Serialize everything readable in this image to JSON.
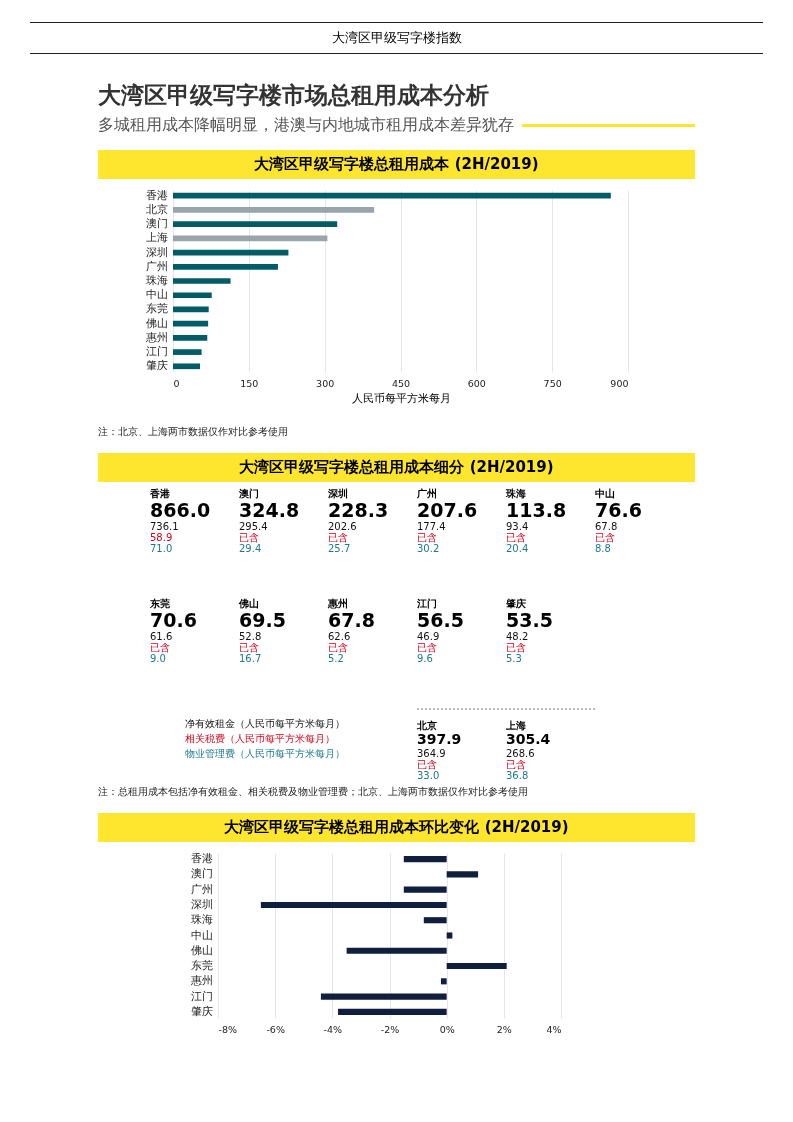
{
  "chart_data": [
    {
      "type": "other",
      "title": "大湾区甲级写字楼市场总租用成本分析",
      "subtitle": "多城租用成本降幅明显，港澳与内地城市租用成本差异犹存",
      "annotations": [
        "大湾区甲级写字楼指数"
      ]
    },
    {
      "type": "bar",
      "title": "大湾区甲级写字楼总租用成本 (2H/2019)",
      "orientation": "horizontal",
      "categories": [
        "香港",
        "北京",
        "澳门",
        "上海",
        "深圳",
        "广州",
        "珠海",
        "中山",
        "东莞",
        "佛山",
        "惠州",
        "江门",
        "肇庆"
      ],
      "values": [
        866.0,
        397.9,
        324.8,
        305.4,
        228.3,
        207.6,
        113.8,
        76.6,
        70.6,
        69.5,
        67.8,
        56.5,
        53.5
      ],
      "colors": [
        "#005c66",
        "#9aa4ab",
        "#005c66",
        "#9aa4ab",
        "#005c66",
        "#005c66",
        "#005c66",
        "#005c66",
        "#005c66",
        "#005c66",
        "#005c66",
        "#005c66",
        "#005c66"
      ],
      "xlim": [
        0,
        900
      ],
      "xticks": [
        0,
        150,
        300,
        450,
        600,
        750,
        900
      ],
      "xlabel": "人民币每平方米每月",
      "grid": "x",
      "annotations": [
        "注：北京、上海两市数据仅作对比参考使用"
      ]
    },
    {
      "type": "other",
      "title": "大湾区甲级写字楼总租用成本细分 (2H/2019)",
      "categories": [
        "香港",
        "澳门",
        "深圳",
        "广州",
        "珠海",
        "中山",
        "东莞",
        "佛山",
        "惠州",
        "江门",
        "肇庆",
        "北京",
        "上海"
      ],
      "totals": [
        "866.0",
        "324.8",
        "228.3",
        "207.6",
        "113.8",
        "76.6",
        "70.6",
        "69.5",
        "67.8",
        "56.5",
        "53.5",
        "397.9",
        "305.4"
      ],
      "series": [
        {
          "name": "净有效租金（人民币每平方米每月）",
          "color": "#111111",
          "values": [
            736.1,
            295.4,
            202.6,
            177.4,
            93.4,
            67.8,
            61.6,
            52.8,
            62.6,
            46.9,
            48.2,
            364.9,
            268.6
          ],
          "value_labels": [
            "736.1",
            "295.4",
            "202.6",
            "177.4",
            "93.4",
            "67.8",
            "61.6",
            "52.8",
            "62.6",
            "46.9",
            "48.2",
            "364.9",
            "268.6"
          ]
        },
        {
          "name": "相关税费（人民币每平方米每月）",
          "color": "#d0021b",
          "values": [
            58.9,
            null,
            null,
            null,
            null,
            null,
            null,
            null,
            null,
            null,
            null,
            null,
            null
          ],
          "value_labels": [
            "58.9",
            "已含",
            "已含",
            "已含",
            "已含",
            "已含",
            "已含",
            "已含",
            "已含",
            "已含",
            "已含",
            "已含",
            "已含"
          ]
        },
        {
          "name": "物业管理费（人民币每平方米每月）",
          "color": "#1b7a8c",
          "values": [
            71.0,
            29.4,
            25.7,
            30.2,
            20.4,
            8.8,
            9.0,
            16.7,
            5.2,
            9.6,
            5.3,
            33.0,
            36.8
          ],
          "value_labels": [
            "71.0",
            "29.4",
            "25.7",
            "30.2",
            "20.4",
            "8.8",
            "9.0",
            "16.7",
            "5.2",
            "9.6",
            "5.3",
            "33.0",
            "36.8"
          ]
        }
      ],
      "annotations": [
        "注：总租用成本包括净有效租金、相关税费及物业管理费；北京、上海两市数据仅作对比参考使用"
      ]
    },
    {
      "type": "bar",
      "title": "大湾区甲级写字楼总租用成本环比变化 (2H/2019)",
      "orientation": "horizontal",
      "categories": [
        "香港",
        "澳门",
        "广州",
        "深圳",
        "珠海",
        "中山",
        "佛山",
        "东莞",
        "惠州",
        "江门",
        "肇庆"
      ],
      "values": [
        -1.5,
        1.1,
        -1.5,
        -6.5,
        -0.8,
        0.2,
        -3.5,
        2.1,
        -0.2,
        -4.4,
        -3.8
      ],
      "color": "#0f1f3d",
      "xlim": [
        -8,
        4
      ],
      "xticks": [
        {
          "value": -8,
          "label": "-8%"
        },
        {
          "value": -6,
          "label": "-6%"
        },
        {
          "value": -4,
          "label": "-4%"
        },
        {
          "value": -2,
          "label": "-2%"
        },
        {
          "value": 0,
          "label": "0%"
        },
        {
          "value": 2,
          "label": "2%"
        },
        {
          "value": 4,
          "label": "4%"
        }
      ],
      "grid": "x"
    }
  ]
}
